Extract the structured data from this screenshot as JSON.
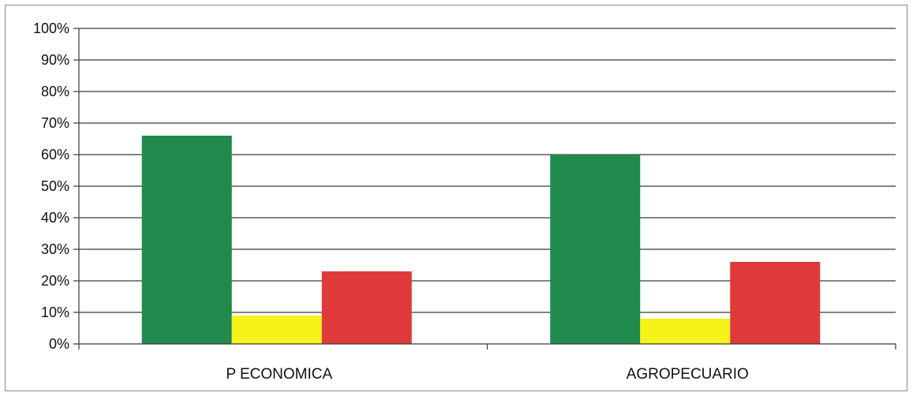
{
  "chart_data": {
    "type": "bar",
    "categories": [
      "P ECONOMICA",
      "AGROPECUARIO"
    ],
    "series": [
      {
        "color": "#1f8a4c",
        "values": [
          66,
          60
        ]
      },
      {
        "color": "#f7f21a",
        "values": [
          9,
          8
        ]
      },
      {
        "color": "#e0393a",
        "values": [
          23,
          26
        ]
      }
    ],
    "yticks": [
      "0%",
      "10%",
      "20%",
      "30%",
      "40%",
      "50%",
      "60%",
      "70%",
      "80%",
      "90%",
      "100%"
    ],
    "ylim": [
      0,
      100
    ],
    "grid": true,
    "legend": "none"
  }
}
